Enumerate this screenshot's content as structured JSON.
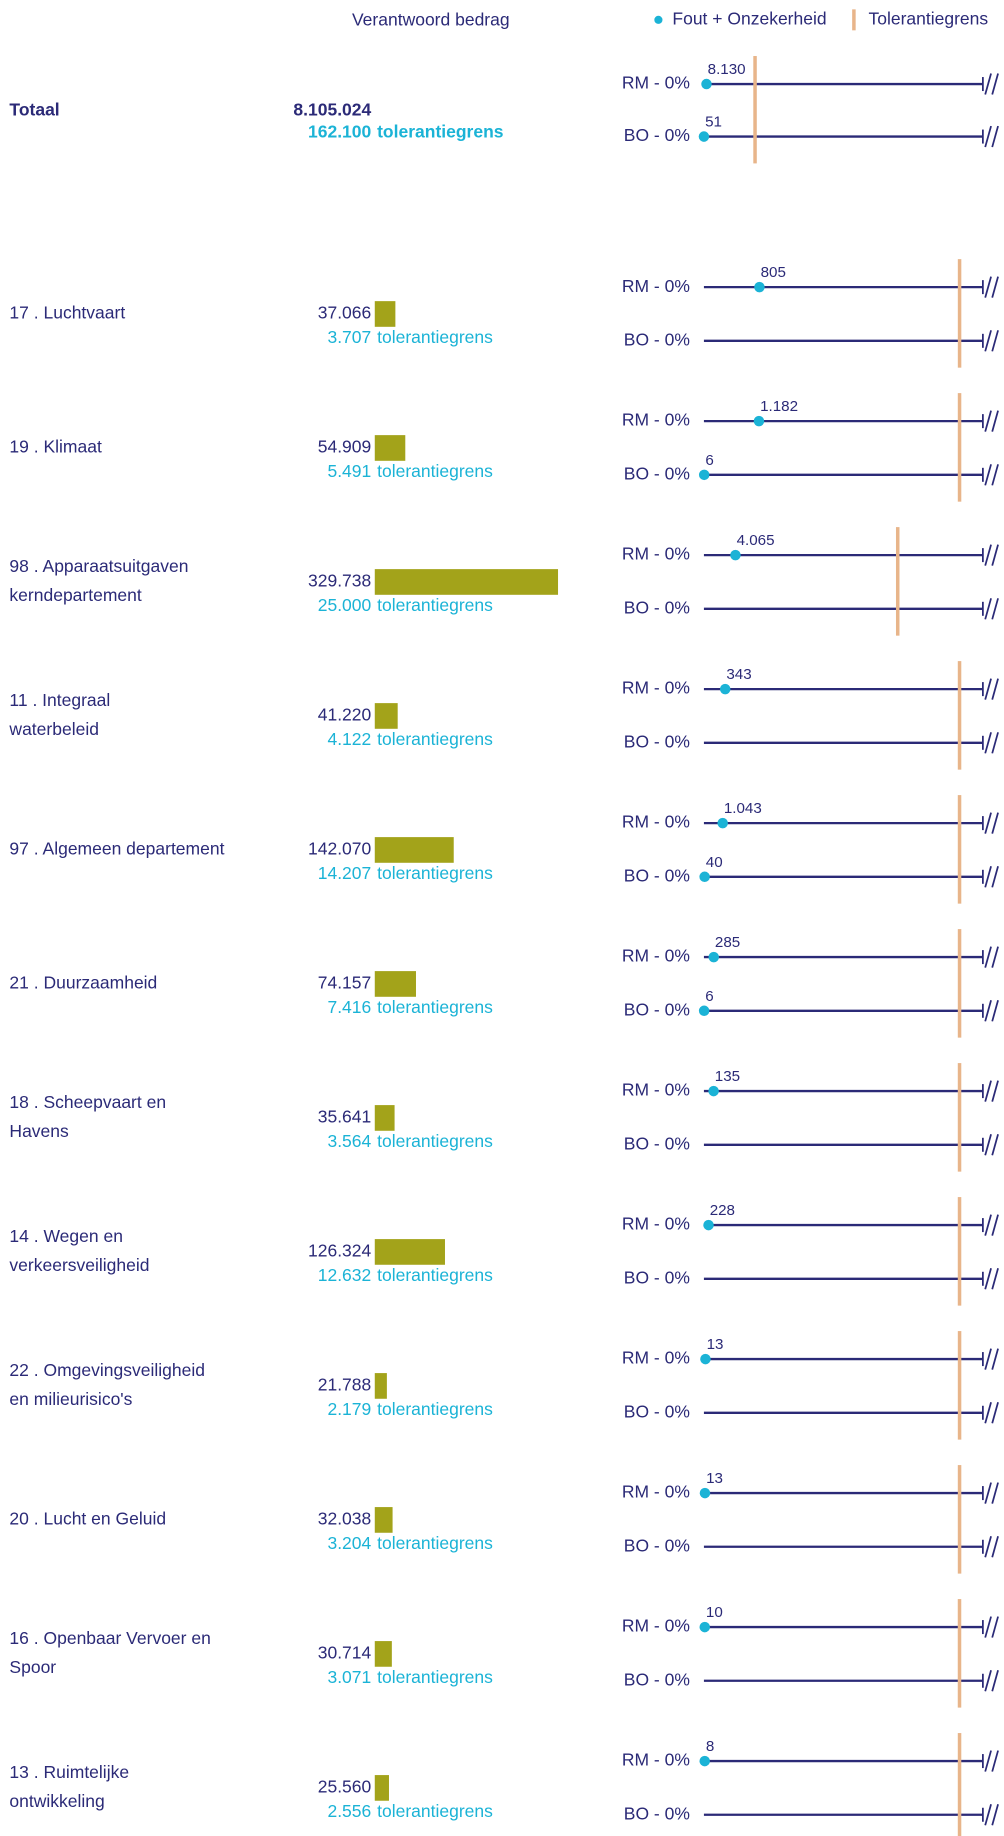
{
  "header": {
    "amount_heading": "Verantwoord bedrag",
    "legend": {
      "error": "Fout + Onzekerheid",
      "tolerance": "Tolerantiegrens"
    }
  },
  "tolerance_word": "tolerantiegrens",
  "total": {
    "label": "Totaal",
    "amount": 8105024,
    "amount_label": "8.105.024",
    "tolerance": 162100,
    "tolerance_label": "162.100",
    "rm": {
      "label": "RM - 0%",
      "value": 8130,
      "value_label": "8.130"
    },
    "bo": {
      "label": "BO - 0%",
      "value": 51
    }
  },
  "rows": [
    {
      "label": [
        "17 . Luchtvaart"
      ],
      "amount": 37066,
      "amount_label": "37.066",
      "tolerance": 3707,
      "tolerance_label": "3.707",
      "rm": {
        "label": "RM - 0%",
        "value": 805
      },
      "bo": {
        "label": "BO - 0%",
        "value": null
      }
    },
    {
      "label": [
        "19 . Klimaat"
      ],
      "amount": 54909,
      "amount_label": "54.909",
      "tolerance": 5491,
      "tolerance_label": "5.491",
      "rm": {
        "label": "RM - 0%",
        "value": 1182,
        "value_label": "1.182"
      },
      "bo": {
        "label": "BO - 0%",
        "value": 6
      }
    },
    {
      "label": [
        "98 . Apparaatsuitgaven",
        "kerndepartement"
      ],
      "amount": 329738,
      "amount_label": "329.738",
      "tolerance": 25000,
      "tolerance_label": "25.000",
      "rm": {
        "label": "RM - 0%",
        "value": 4065,
        "value_label": "4.065"
      },
      "bo": {
        "label": "BO - 0%",
        "value": null
      }
    },
    {
      "label": [
        "11 . Integraal",
        "waterbeleid"
      ],
      "amount": 41220,
      "amount_label": "41.220",
      "tolerance": 4122,
      "tolerance_label": "4.122",
      "rm": {
        "label": "RM - 0%",
        "value": 343
      },
      "bo": {
        "label": "BO - 0%",
        "value": null
      }
    },
    {
      "label": [
        "97 . Algemeen departement"
      ],
      "amount": 142070,
      "amount_label": "142.070",
      "tolerance": 14207,
      "tolerance_label": "14.207",
      "rm": {
        "label": "RM - 0%",
        "value": 1043,
        "value_label": "1.043"
      },
      "bo": {
        "label": "BO - 0%",
        "value": 40
      }
    },
    {
      "label": [
        "21 . Duurzaamheid"
      ],
      "amount": 74157,
      "amount_label": "74.157",
      "tolerance": 7416,
      "tolerance_label": "7.416",
      "rm": {
        "label": "RM - 0%",
        "value": 285
      },
      "bo": {
        "label": "BO - 0%",
        "value": 6
      }
    },
    {
      "label": [
        "18 . Scheepvaart en",
        "Havens"
      ],
      "amount": 35641,
      "amount_label": "35.641",
      "tolerance": 3564,
      "tolerance_label": "3.564",
      "rm": {
        "label": "RM - 0%",
        "value": 135
      },
      "bo": {
        "label": "BO - 0%",
        "value": null
      }
    },
    {
      "label": [
        "14 . Wegen en",
        "verkeersveiligheid"
      ],
      "amount": 126324,
      "amount_label": "126.324",
      "tolerance": 12632,
      "tolerance_label": "12.632",
      "rm": {
        "label": "RM - 0%",
        "value": 228
      },
      "bo": {
        "label": "BO - 0%",
        "value": null
      }
    },
    {
      "label": [
        "22 . Omgevingsveiligheid",
        "en milieurisico's"
      ],
      "amount": 21788,
      "amount_label": "21.788",
      "tolerance": 2179,
      "tolerance_label": "2.179",
      "rm": {
        "label": "RM - 0%",
        "value": 13
      },
      "bo": {
        "label": "BO - 0%",
        "value": null
      }
    },
    {
      "label": [
        "20 . Lucht en Geluid"
      ],
      "amount": 32038,
      "amount_label": "32.038",
      "tolerance": 3204,
      "tolerance_label": "3.204",
      "rm": {
        "label": "RM - 0%",
        "value": 13
      },
      "bo": {
        "label": "BO - 0%",
        "value": null
      }
    },
    {
      "label": [
        "16 . Openbaar Vervoer en",
        "Spoor"
      ],
      "amount": 30714,
      "amount_label": "30.714",
      "tolerance": 3071,
      "tolerance_label": "3.071",
      "rm": {
        "label": "RM - 0%",
        "value": 10
      },
      "bo": {
        "label": "BO - 0%",
        "value": null
      }
    },
    {
      "label": [
        "13 . Ruimtelijke",
        "ontwikkeling"
      ],
      "amount": 25560,
      "amount_label": "25.560",
      "tolerance": 2556,
      "tolerance_label": "2.556",
      "rm": {
        "label": "RM - 0%",
        "value": 8
      },
      "bo": {
        "label": "BO - 0%",
        "value": null
      }
    }
  ]
}
